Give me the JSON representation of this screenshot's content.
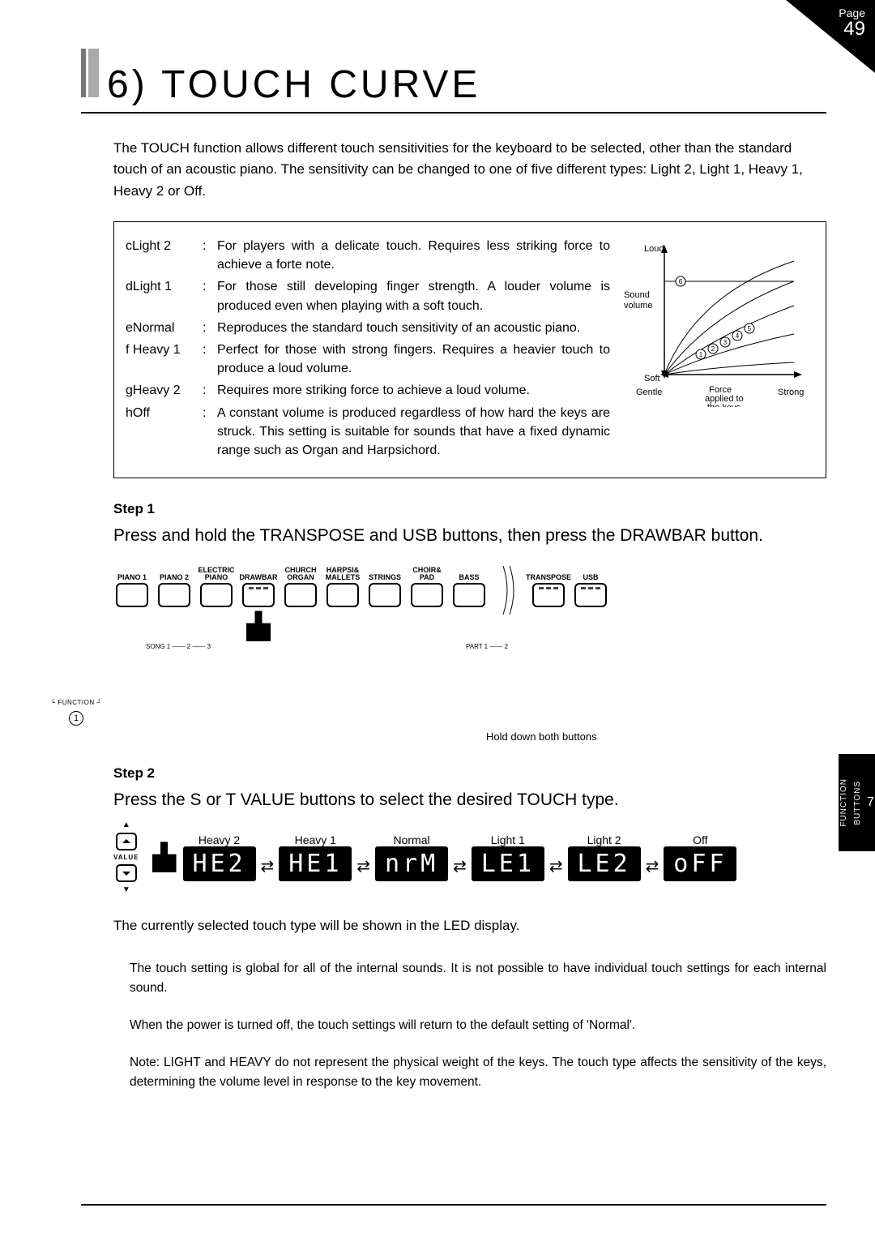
{
  "page_tab": {
    "label": "Page",
    "number": "49"
  },
  "side_tab": {
    "line1": "FUNCTION",
    "line2": "BUTTONS",
    "chapter": "7"
  },
  "title": "6) TOUCH CURVE",
  "intro": "The TOUCH function allows different touch sensitivities for the keyboard to be selected, other than the standard touch of an acoustic piano. The sensitivity can be changed to one of five different types: Light 2, Light 1, Heavy 1, Heavy 2 or Off.",
  "defs": [
    {
      "k": "cLight 2",
      "v": "For players with a delicate touch. Requires less striking force to achieve a forte note."
    },
    {
      "k": "dLight 1",
      "v": "For those still developing finger strength. A louder volume is produced even when playing with a soft touch."
    },
    {
      "k": "eNormal",
      "v": "Reproduces the standard touch sensitivity of an acoustic piano."
    },
    {
      "k": "f Heavy 1",
      "v": "Perfect for those with strong fingers. Requires a heavier touch to produce a loud volume."
    },
    {
      "k": "gHeavy 2",
      "v": "Requires more striking force to achieve a loud volume."
    },
    {
      "k": "hOff",
      "v": "A constant volume is produced regardless of how hard the keys are struck. This setting is suitable for sounds that have a fixed dynamic range such as Organ and Harpsichord."
    }
  ],
  "graph": {
    "y_top": "Loud",
    "y_mid1": "Sound",
    "y_mid2": "volume",
    "y_bot": "Soft",
    "x_left": "Gentle",
    "x_mid": "Force\napplied to\nthe keys",
    "x_right": "Strong",
    "curve_labels": [
      "1",
      "2",
      "3",
      "4",
      "5",
      "6"
    ]
  },
  "step1_label": "Step 1",
  "step1_text": "Press and hold the TRANSPOSE and USB buttons, then press the DRAWBAR button.",
  "panel_buttons": [
    {
      "l": "PIANO 1"
    },
    {
      "l": "PIANO 2"
    },
    {
      "l": "ELECTRIC\nPIANO"
    },
    {
      "l": "DRAWBAR",
      "led": true
    },
    {
      "l": "CHURCH\nORGAN"
    },
    {
      "l": "HARPSI&\nMALLETS"
    },
    {
      "l": "STRINGS"
    },
    {
      "l": "CHOIR&\nPAD"
    },
    {
      "l": "BASS"
    }
  ],
  "panel_sub_left": "SONG 1 —— 2 —— 3",
  "panel_sub_right": "PART 1 —— 2",
  "panel_right": [
    {
      "l": "TRANSPOSE",
      "led": true
    },
    {
      "l": "USB",
      "led": true
    }
  ],
  "panel_right_sub": "└ FUNCTION ┘",
  "hold_note": "Hold down both buttons",
  "circle_1": "1",
  "step2_label": "Step 2",
  "step2_text": "Press the  S or  T VALUE buttons to select the desired TOUCH type.",
  "value_label": "VALUE",
  "led_displays": [
    {
      "label": "Heavy 2",
      "txt": "HE2"
    },
    {
      "label": "Heavy 1",
      "txt": "HE1"
    },
    {
      "label": "Normal",
      "txt": "nrM"
    },
    {
      "label": "Light 1",
      "txt": "LE1"
    },
    {
      "label": "Light 2",
      "txt": "LE2"
    },
    {
      "label": "Off",
      "txt": "oFF"
    }
  ],
  "after_led": "The currently selected touch type will be shown in the LED display.",
  "notes": [
    " The touch setting is global for all of the internal sounds. It is not possible to have individual touch settings for each internal sound.",
    " When the power is turned off, the touch settings will return to the default setting of 'Normal'.",
    " Note: LIGHT and HEAVY do not represent the physical weight of the keys. The touch type affects the sensitivity of the keys, determining the volume level in response to the key movement."
  ]
}
